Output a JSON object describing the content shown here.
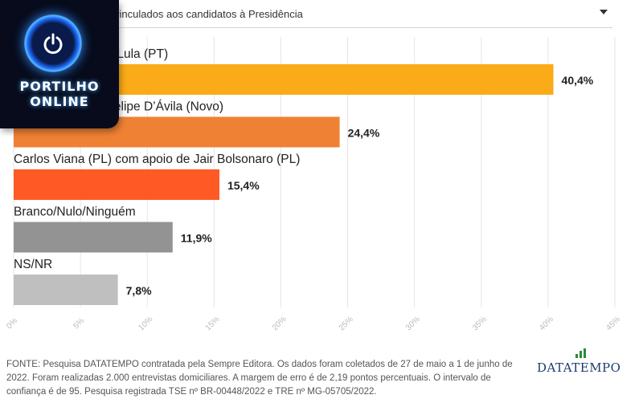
{
  "dropdown": {
    "selected": "vinculados aos candidatos à Presidência"
  },
  "chart_data": {
    "type": "bar",
    "orientation": "horizontal",
    "categories": [
      "(PSD) com apoio de Lula (PT)",
      "(Novo) com apoio de Felipe D’Ávila (Novo)",
      "Carlos Viana (PL) com apoio de Jair Bolsonaro (PL)",
      "Branco/Nulo/Ninguém",
      "NS/NR"
    ],
    "category_labels_visible": [
      "SD) com apoio de Lula (PT)",
      "o) com apoio de Felipe D’Ávila (Novo)",
      "Carlos Viana (PL) com apoio de Jair Bolsonaro (PL)",
      "Branco/Nulo/Ninguém",
      "NS/NR"
    ],
    "values": [
      40.4,
      24.4,
      15.4,
      11.9,
      7.8
    ],
    "value_labels": [
      "40,4%",
      "24,4%",
      "15,4%",
      "11,9%",
      "7,8%"
    ],
    "colors": [
      "#fbab18",
      "#ef8134",
      "#ff5a26",
      "#939393",
      "#bfbfbf"
    ],
    "xlim": [
      0,
      45
    ],
    "xticks": [
      0,
      5,
      10,
      15,
      20,
      25,
      30,
      35,
      40,
      45
    ],
    "xtick_labels": [
      "0%",
      "5%",
      "10%",
      "15%",
      "20%",
      "25%",
      "30%",
      "35%",
      "40%",
      "45%"
    ],
    "grid": true,
    "gridline_color": "#e6e6e6"
  },
  "footer": {
    "source": "FONTE: Pesquisa DATATEMPO contratada pela Sempre Editora. Os dados foram coletados de 27 de maio a 1 de junho de 2022. Foram realizadas 2.000 entrevistas domiciliares. A margem de erro é de 2,19 pontos percentuais. O intervalo de confiança é de 95. Pesquisa registrada TSE nº BR-00448/2022 e TRE nº MG-05705/2022."
  },
  "brand": {
    "name": "DATATEMPO",
    "accent": "#2a8a3a",
    "color": "#1c3a6e"
  },
  "logo": {
    "line1": "PORTILHO",
    "line2": "ONLINE",
    "icon": "power-icon"
  }
}
